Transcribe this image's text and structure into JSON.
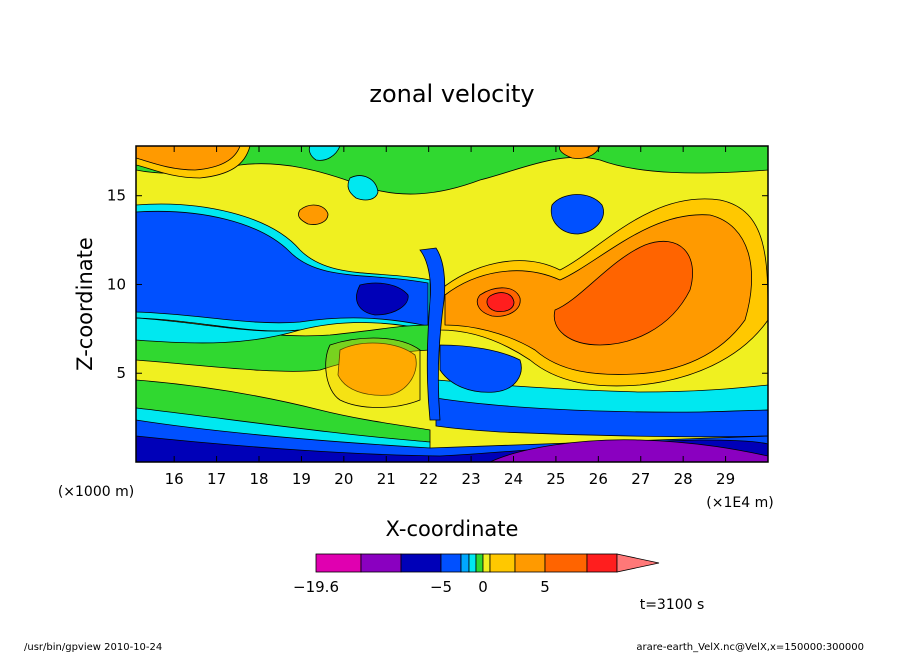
{
  "chart_data": {
    "type": "heatmap",
    "title": "zonal velocity",
    "xlabel": "X-coordinate",
    "ylabel": "Z-coordinate",
    "x_unit_left": "(×1000 m)",
    "x_unit_right": "(×1E4 m)",
    "x_ticks": [
      "16",
      "17",
      "18",
      "19",
      "20",
      "21",
      "22",
      "23",
      "24",
      "25",
      "26",
      "27",
      "28",
      "29"
    ],
    "y_ticks": [
      "5",
      "10",
      "15"
    ],
    "x_tick_values": [
      16,
      17,
      18,
      19,
      20,
      21,
      22,
      23,
      24,
      25,
      26,
      27,
      28,
      29
    ],
    "y_tick_values": [
      5,
      10,
      15
    ],
    "xlim": [
      15.1,
      30.0
    ],
    "ylim": [
      0.0,
      17.8
    ],
    "colorbar": {
      "labels": [
        {
          "text": "−19.6",
          "index": 0
        },
        {
          "text": "−5",
          "index": 3
        },
        {
          "text": "0",
          "index": 7
        },
        {
          "text": "5",
          "index": 10
        }
      ],
      "colors": [
        "#e000b0",
        "#8a00c0",
        "#0000b8",
        "#0050ff",
        "#00a8ff",
        "#00e8f0",
        "#30d830",
        "#f0f020",
        "#ffc800",
        "#ff9a00",
        "#ff6400",
        "#ff1e1e",
        "#ff7878"
      ]
    },
    "time_label": "t=3100 s",
    "colors": {
      "magenta": "#e000b0",
      "purple": "#8a00c0",
      "navy": "#0000b8",
      "blue": "#0050ff",
      "cyan": "#00e8f0",
      "green": "#30d830",
      "yellow": "#f0f020",
      "gold": "#ffc800",
      "orange": "#ff9a00",
      "darkorange": "#ff6400",
      "red": "#ff1e1e"
    }
  },
  "footer": {
    "left": "/usr/bin/gpview   2010-10-24",
    "right": "arare-earth_VelX.nc@VelX,x=150000:300000"
  }
}
